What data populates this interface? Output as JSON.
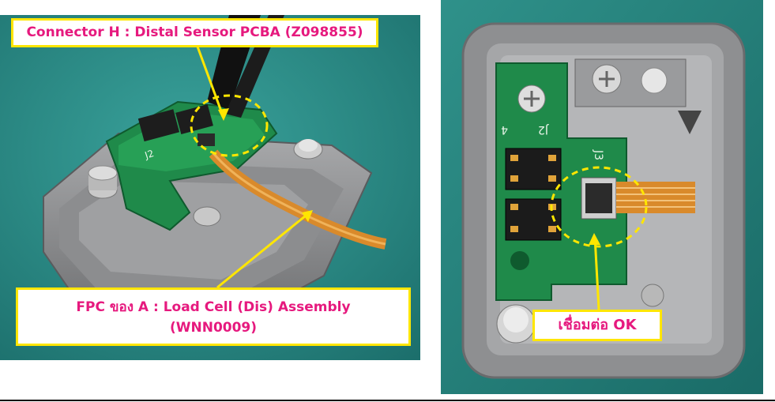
{
  "left_photo": {
    "callout_connector": "Connector H : Distal Sensor PCBA (Z098855)",
    "callout_fpc_line1": "FPC ของ A :  Load Cell (Dis) Assembly",
    "callout_fpc_line2": "(WNN0009)",
    "pcb_silk": "J2"
  },
  "right_photo": {
    "callout_ok": "เชื่อมต่อ OK",
    "silk_j2": "J2",
    "silk_j3": "J3",
    "silk_4": "4"
  },
  "colors": {
    "callout_text": "#e6197e",
    "callout_border": "#ffe600",
    "highlight_circle": "#ffe600",
    "pcb_green": "#1f8a4a",
    "bg_teal": "#2e8f8a",
    "fpc_orange": "#d98a2b"
  }
}
